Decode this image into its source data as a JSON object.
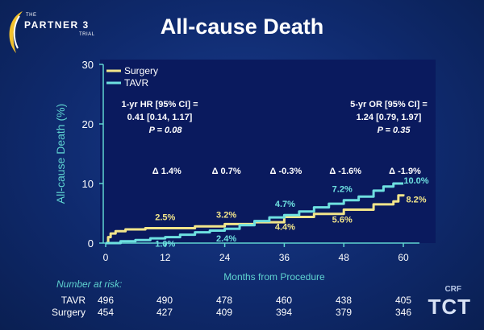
{
  "logo": {
    "the": "THE",
    "partner": "PARTNER 3",
    "trial": "TRIAL"
  },
  "colors": {
    "surgery": "#f2e58a",
    "tavr": "#6ee0e0",
    "axis": "#5fd3d0",
    "text": "#ffffff"
  },
  "chart_data": {
    "type": "line",
    "title": "All-cause Death",
    "xlabel": "Months from Procedure",
    "ylabel": "All-cause Death (%)",
    "xlim": [
      0,
      60
    ],
    "ylim": [
      0,
      30
    ],
    "xticks": [
      0,
      12,
      24,
      36,
      48,
      60
    ],
    "yticks": [
      0,
      10,
      20,
      30
    ],
    "legend": "top-left",
    "series": [
      {
        "name": "Surgery",
        "x": [
          0,
          0.5,
          1,
          2,
          4,
          8,
          12,
          18,
          24,
          30,
          36,
          42,
          48,
          54,
          58,
          59,
          60
        ],
        "y": [
          0,
          1.0,
          1.6,
          2.0,
          2.3,
          2.5,
          2.5,
          2.8,
          3.2,
          3.5,
          4.4,
          4.9,
          5.6,
          6.5,
          7.0,
          8.0,
          8.2
        ]
      },
      {
        "name": "TAVR",
        "x": [
          0,
          3,
          6,
          9,
          12,
          15,
          18,
          21,
          24,
          27,
          30,
          33,
          36,
          39,
          42,
          45,
          48,
          51,
          54,
          56,
          58,
          60
        ],
        "y": [
          0,
          0.3,
          0.5,
          0.8,
          1.0,
          1.4,
          1.8,
          2.1,
          2.4,
          3.0,
          3.7,
          4.3,
          4.7,
          5.3,
          6.0,
          6.6,
          7.2,
          7.8,
          8.8,
          9.5,
          10.0,
          10.0
        ]
      }
    ],
    "annotations": [
      {
        "text": "2.5%",
        "x": 12,
        "y": 2.5,
        "color": "#f2e58a"
      },
      {
        "text": "1.0%",
        "x": 12,
        "y": 1.0,
        "color": "#6ee0e0"
      },
      {
        "text": "3.2%",
        "x": 24,
        "y": 3.2,
        "color": "#f2e58a"
      },
      {
        "text": "2.4%",
        "x": 24,
        "y": 2.4,
        "color": "#6ee0e0"
      },
      {
        "text": "4.7%",
        "x": 36,
        "y": 4.7,
        "color": "#6ee0e0"
      },
      {
        "text": "4.4%",
        "x": 36,
        "y": 4.4,
        "color": "#f2e58a"
      },
      {
        "text": "7.2%",
        "x": 48,
        "y": 7.2,
        "color": "#6ee0e0"
      },
      {
        "text": "5.6%",
        "x": 48,
        "y": 5.6,
        "color": "#f2e58a"
      },
      {
        "text": "10.0%",
        "x": 60,
        "y": 10.0,
        "color": "#6ee0e0"
      },
      {
        "text": "8.2%",
        "x": 60,
        "y": 8.2,
        "color": "#f2e58a"
      }
    ],
    "deltas": [
      {
        "text": "Δ 1.4%",
        "x": 12
      },
      {
        "text": "Δ 0.7%",
        "x": 24
      },
      {
        "text": "Δ -0.3%",
        "x": 36
      },
      {
        "text": "Δ -1.6%",
        "x": 48
      },
      {
        "text": "Δ -1.9%",
        "x": 60
      }
    ],
    "stat_left": [
      "1-yr HR [95% CI] =",
      "0.41 [0.14, 1.17]",
      "P = 0.08"
    ],
    "stat_right": [
      "5-yr OR [95% CI] =",
      "1.24 [0.79, 1.97]",
      "P = 0.35"
    ]
  },
  "risk": {
    "title": "Number at risk:",
    "rows": [
      {
        "label": "TAVR",
        "values": [
          "496",
          "490",
          "478",
          "460",
          "438",
          "405"
        ]
      },
      {
        "label": "Surgery",
        "values": [
          "454",
          "427",
          "409",
          "394",
          "379",
          "346"
        ]
      }
    ]
  },
  "crf": {
    "line1": "CRF",
    "line2": "TCT"
  }
}
